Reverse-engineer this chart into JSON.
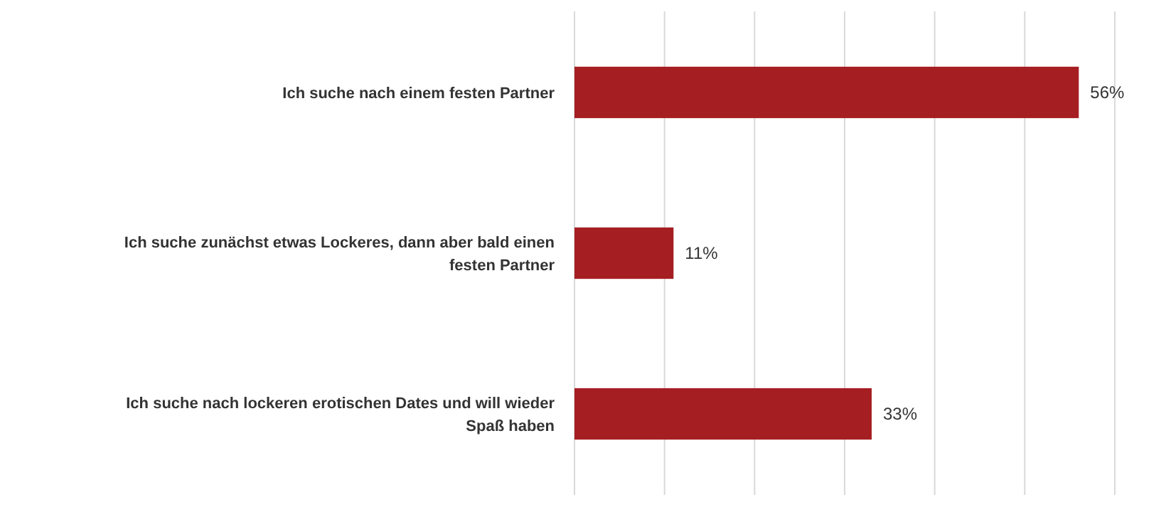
{
  "chart_data": {
    "type": "bar",
    "orientation": "horizontal",
    "categories": [
      "Ich suche nach einem festen Partner",
      "Ich suche zunächst etwas Lockeres, dann aber bald einen festen Partner",
      "Ich suche nach lockeren erotischen Dates und will wieder Spaß haben"
    ],
    "values": [
      56,
      11,
      33
    ],
    "value_labels": [
      "56%",
      "11%",
      "33%"
    ],
    "color": "#a51e22",
    "xlim": [
      0,
      60
    ],
    "xticks": [
      {
        "value": 0,
        "label": null
      },
      {
        "value": 10,
        "label": null
      },
      {
        "value": 20,
        "label": null
      },
      {
        "value": 30,
        "label": null
      },
      {
        "value": 40,
        "label": null
      },
      {
        "value": 50,
        "label": null
      },
      {
        "value": 60,
        "label": null
      }
    ],
    "grid": "x"
  }
}
